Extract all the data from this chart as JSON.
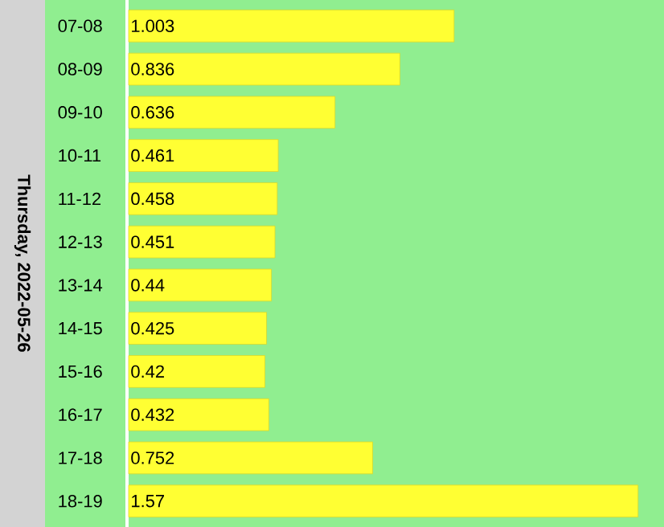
{
  "chart_data": {
    "type": "bar",
    "orientation": "horizontal",
    "ylabel": "Thursday, 2022-05-26",
    "categories": [
      "07-08",
      "08-09",
      "09-10",
      "10-11",
      "11-12",
      "12-13",
      "13-14",
      "14-15",
      "15-16",
      "16-17",
      "17-18",
      "18-19"
    ],
    "values": [
      1.003,
      0.836,
      0.636,
      0.461,
      0.458,
      0.451,
      0.44,
      0.425,
      0.42,
      0.432,
      0.752,
      1.57
    ],
    "color": "#ffff33",
    "xlim": [
      0,
      1.65
    ],
    "data_labels": true,
    "tick_labels": "y"
  }
}
